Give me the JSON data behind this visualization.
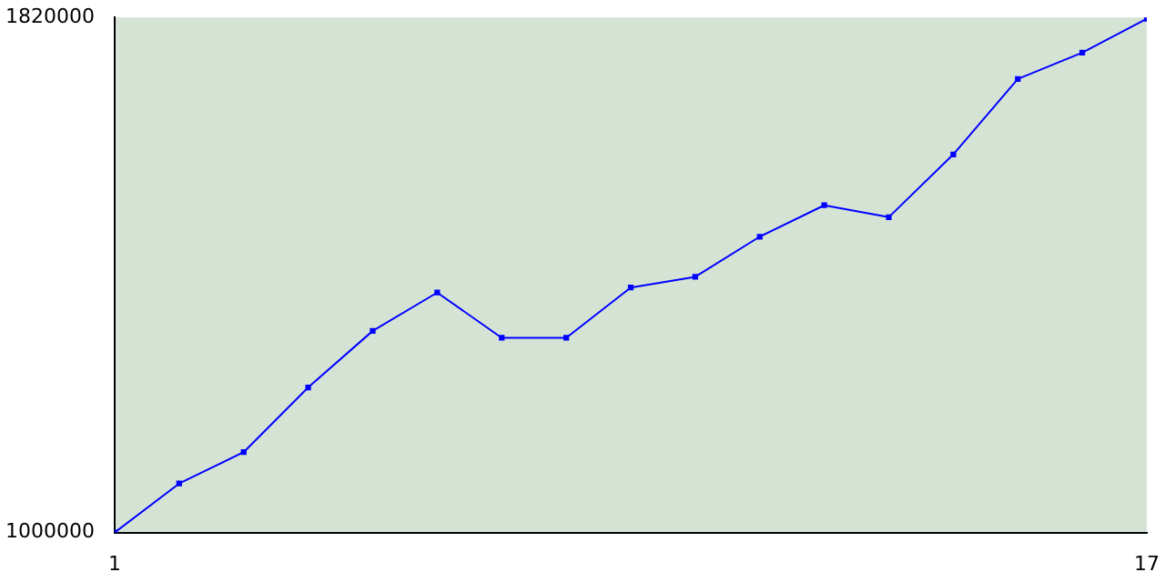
{
  "chart_data": {
    "type": "line",
    "x": [
      1,
      2,
      3,
      4,
      5,
      6,
      7,
      8,
      9,
      10,
      11,
      12,
      13,
      14,
      15,
      16,
      17
    ],
    "series": [
      {
        "color": "#0000ff",
        "values": [
          1000000,
          1078000,
          1128000,
          1231000,
          1321000,
          1382000,
          1310000,
          1310000,
          1390000,
          1407000,
          1471000,
          1521000,
          1502000,
          1602000,
          1722000,
          1764000,
          1818000
        ]
      }
    ],
    "xlim": [
      1,
      17
    ],
    "xticks": [
      1,
      17
    ],
    "ylim": [
      1000000,
      1820000
    ],
    "yticks": [
      1000000,
      1820000
    ],
    "grid": false,
    "legend": false,
    "marker": "square",
    "line_style": "solid"
  }
}
